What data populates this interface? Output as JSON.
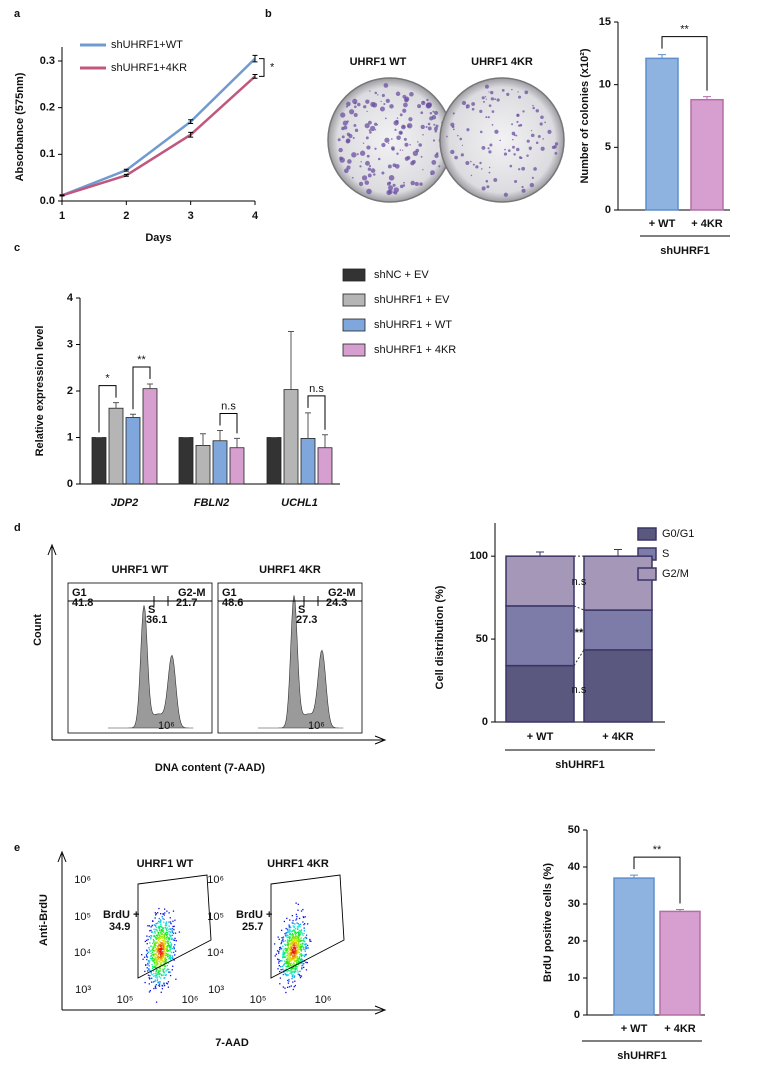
{
  "panel_labels": [
    "a",
    "b",
    "c",
    "d",
    "e"
  ],
  "chart_data": [
    {
      "type": "line",
      "x": [
        1,
        2,
        3,
        4
      ],
      "xlim": [
        1,
        4
      ],
      "xticks": [
        1,
        2,
        3,
        4
      ],
      "ylim": [
        0,
        0.33
      ],
      "yticks": [
        {
          "value": 0,
          "label": "0.0"
        },
        0.1,
        0.2,
        0.3
      ],
      "x_label": "Days",
      "y_label": "Absorbance (575nm)",
      "series": [
        {
          "name": "shUHRF1+WT",
          "color": "#6f9bd1",
          "values": [
            0.012,
            0.066,
            0.17,
            0.305
          ],
          "errors": [
            0.001,
            0.002,
            0.004,
            0.007
          ]
        },
        {
          "name": "shUHRF1+4KR",
          "color": "#c0587e",
          "values": [
            0.012,
            0.055,
            0.142,
            0.267
          ],
          "errors": [
            0.001,
            0.002,
            0.005,
            0.004
          ]
        }
      ],
      "annotations": [
        "*"
      ]
    },
    {
      "type": "bar",
      "categories": [
        "+ WT",
        "+ 4KR"
      ],
      "values": [
        12.1,
        8.8
      ],
      "errors": [
        0.3,
        0.25
      ],
      "colors": [
        "#8fb3e0",
        "#d69fcf"
      ],
      "edge_colors": [
        "#5f8fca",
        "#b46ea9"
      ],
      "ylim": [
        0,
        15
      ],
      "yticks": [
        0,
        5,
        10,
        15
      ],
      "y_label": "Number of colonies (x10²)",
      "group_label": "shUHRF1",
      "annotations": [
        "**"
      ]
    },
    {
      "type": "grouped_bar",
      "categories": [
        "JDP2",
        "FBLN2",
        "UCHL1"
      ],
      "ylim": [
        0,
        4
      ],
      "yticks": [
        0,
        1,
        2,
        3,
        4
      ],
      "y_label": "Relative expression level",
      "series": [
        {
          "name": "shNC + EV",
          "color": "#333333",
          "values": [
            1,
            1,
            1
          ],
          "errors": [
            0,
            0,
            0
          ]
        },
        {
          "name": "shUHRF1 + EV",
          "color": "#b5b5b5",
          "values": [
            1.63,
            0.83,
            2.03
          ],
          "errors": [
            0.12,
            0.25,
            1.25
          ]
        },
        {
          "name": "shUHRF1 + WT",
          "color": "#7fa7db",
          "values": [
            1.43,
            0.93,
            0.98
          ],
          "errors": [
            0.07,
            0.22,
            0.55
          ]
        },
        {
          "name": "shUHRF1 + 4KR",
          "color": "#d69fd0",
          "values": [
            2.05,
            0.78,
            0.78
          ],
          "errors": [
            0.1,
            0.2,
            0.28
          ]
        }
      ],
      "annotations": [
        "*",
        "**",
        "n.s",
        "n.s"
      ]
    },
    {
      "type": "stacked_bar",
      "categories": [
        "+ WT",
        "+ 4KR"
      ],
      "ylim": [
        0,
        120
      ],
      "yticks": [
        0,
        50,
        100
      ],
      "y_label": "Cell distribution (%)",
      "group_label": "shUHRF1",
      "series": [
        {
          "name": "G0/G1",
          "color": "#5b5880",
          "values": [
            34,
            43.5
          ],
          "errors": [
            2,
            4
          ]
        },
        {
          "name": "S",
          "color": "#7d7ca8",
          "values": [
            36,
            24
          ]
        },
        {
          "name": "G2/M",
          "color": "#a597b8",
          "values": [
            30,
            32.5
          ],
          "errors": [
            2.5,
            4
          ]
        }
      ],
      "annotations": [
        "n.s",
        "**",
        "n.s"
      ]
    },
    {
      "type": "bar",
      "categories": [
        "+ WT",
        "+ 4KR"
      ],
      "values": [
        37,
        28
      ],
      "errors": [
        0.8,
        0.5
      ],
      "colors": [
        "#8fb3e0",
        "#d69fcf"
      ],
      "edge_colors": [
        "#5f8fca",
        "#b46ea9"
      ],
      "ylim": [
        0,
        50
      ],
      "yticks": [
        0,
        10,
        20,
        30,
        40,
        50
      ],
      "y_label": "BrdU positive cells (%)",
      "group_label": "shUHRF1",
      "annotations": [
        "**"
      ]
    }
  ],
  "images": {
    "b": {
      "titles": [
        "UHRF1 WT",
        "UHRF1 4KR"
      ]
    },
    "d": {
      "titles": [
        "UHRF1 WT",
        "UHRF1 4KR"
      ],
      "gates": [
        {
          "labels": [
            "G1",
            "S",
            "G2-M"
          ],
          "values": [
            41.8,
            36.1,
            21.7
          ]
        },
        {
          "labels": [
            "G1",
            "S",
            "G2-M"
          ],
          "values": [
            48.6,
            27.3,
            24.3
          ]
        }
      ],
      "axis_tick": "10⁶",
      "y_label": "Count",
      "x_label": "DNA content (7-AAD)"
    },
    "e": {
      "titles": [
        "UHRF1 WT",
        "UHRF1 4KR"
      ],
      "gates": [
        {
          "label": "BrdU +",
          "value": 34.9
        },
        {
          "label": "BrdU +",
          "value": 25.7
        }
      ],
      "y_ticks": [
        "10⁶",
        "10⁵",
        "10⁴",
        "10³"
      ],
      "x_ticks": [
        "10⁵",
        "10⁶"
      ],
      "y_label": "Anti-BrdU",
      "x_label": "7-AAD"
    }
  }
}
